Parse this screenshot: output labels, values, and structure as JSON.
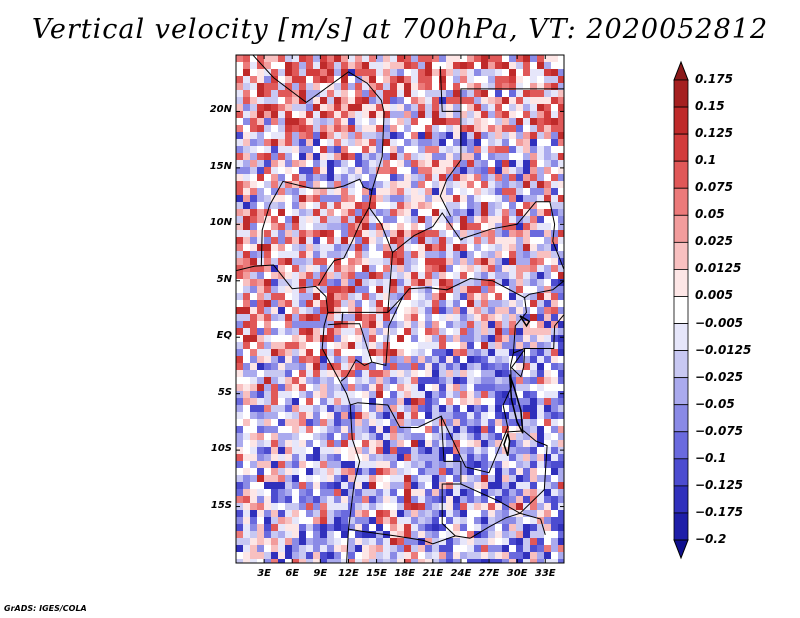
{
  "title": "Vertical velocity [m/s] at 700hPa, VT: 2020052812",
  "credit": "GrADS: IGES/COLA",
  "map": {
    "lon_labels": [
      "3E",
      "6E",
      "9E",
      "12E",
      "15E",
      "18E",
      "21E",
      "24E",
      "27E",
      "30E",
      "33E"
    ],
    "lat_labels": [
      "20N",
      "15N",
      "10N",
      "5N",
      "EQ",
      "5S",
      "10S",
      "15S"
    ],
    "lon_range": [
      0,
      35
    ],
    "lat_range": [
      -20,
      25
    ]
  },
  "colorbar": {
    "labels": [
      "0.175",
      "0.15",
      "0.125",
      "0.1",
      "0.075",
      "0.05",
      "0.025",
      "0.0125",
      "0.005",
      "−0.005",
      "−0.0125",
      "−0.025",
      "−0.05",
      "−0.075",
      "−0.1",
      "−0.125",
      "−0.175",
      "−0.2"
    ],
    "colors": [
      "#8b1a1a",
      "#a52020",
      "#bf2a2a",
      "#d23c3c",
      "#e05858",
      "#ec7a7a",
      "#f29c9c",
      "#f8c0c0",
      "#fde6e6",
      "#ffffff",
      "#e6e6fa",
      "#c8c8f2",
      "#aaaaee",
      "#8a8ae6",
      "#6a6ade",
      "#4c4cd0",
      "#3030bc",
      "#1e1ea8",
      "#10108e"
    ]
  }
}
